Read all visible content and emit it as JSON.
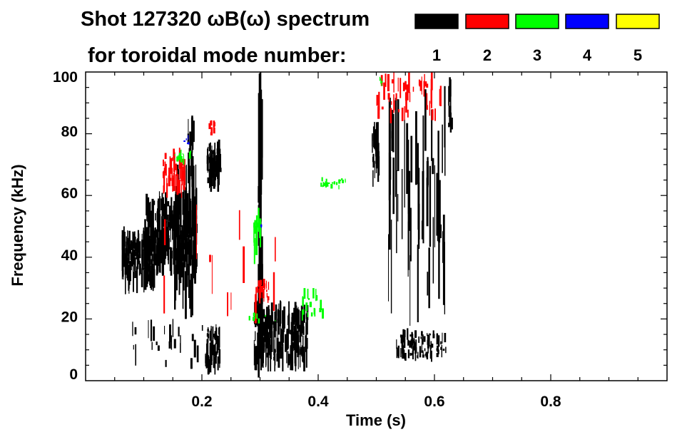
{
  "chart_data": {
    "type": "heatmap",
    "title_line1": "Shot 127320 ωB(ω) spectrum",
    "title_line2": "for toroidal mode number:",
    "xlabel": "Time (s)",
    "ylabel": "Frequency (kHz)",
    "xlim": [
      0,
      1.0
    ],
    "ylim": [
      0,
      100
    ],
    "xticks": [
      0.2,
      0.4,
      0.6,
      0.8
    ],
    "xtick_labels": [
      "0.2",
      "0.4",
      "0.6",
      "0.8"
    ],
    "yticks": [
      0,
      20,
      40,
      60,
      80,
      100
    ],
    "ytick_labels": [
      "0",
      "20",
      "40",
      "60",
      "80",
      "100"
    ],
    "legend_position": "top-right",
    "legend": [
      {
        "label": "1",
        "color": "#000000"
      },
      {
        "label": "2",
        "color": "#ff0000"
      },
      {
        "label": "3",
        "color": "#00ff00"
      },
      {
        "label": "4",
        "color": "#0000ff"
      },
      {
        "label": "5",
        "color": "#ffff00"
      }
    ],
    "regions": [
      {
        "mode": 1,
        "t": [
          0.062,
          0.118
        ],
        "f": [
          28,
          50
        ],
        "density": 140
      },
      {
        "mode": 1,
        "t": [
          0.1,
          0.19
        ],
        "f": [
          34,
          62
        ],
        "density": 220
      },
      {
        "mode": 1,
        "t": [
          0.15,
          0.19
        ],
        "f": [
          20,
          70
        ],
        "density": 70
      },
      {
        "mode": 1,
        "t": [
          0.175,
          0.185
        ],
        "f": [
          60,
          88
        ],
        "density": 15
      },
      {
        "mode": 1,
        "t": [
          0.208,
          0.233
        ],
        "f": [
          61,
          79
        ],
        "density": 70
      },
      {
        "mode": 1,
        "t": [
          0.205,
          0.232
        ],
        "f": [
          2,
          19
        ],
        "density": 60
      },
      {
        "mode": 1,
        "t": [
          0.288,
          0.38
        ],
        "f": [
          3,
          26
        ],
        "density": 200
      },
      {
        "mode": 1,
        "t": [
          0.296,
          0.302
        ],
        "f": [
          0,
          100
        ],
        "density": 40
      },
      {
        "mode": 1,
        "t": [
          0.492,
          0.503
        ],
        "f": [
          61,
          86
        ],
        "density": 25
      },
      {
        "mode": 1,
        "t": [
          0.534,
          0.62
        ],
        "f": [
          6,
          17
        ],
        "density": 90
      },
      {
        "mode": 1,
        "t": [
          0.52,
          0.62
        ],
        "f": [
          15,
          98
        ],
        "density": 60
      },
      {
        "mode": 1,
        "t": [
          0.623,
          0.628
        ],
        "f": [
          78,
          99
        ],
        "density": 12
      },
      {
        "mode": 1,
        "t": [
          0.08,
          0.2
        ],
        "f": [
          2,
          20
        ],
        "density": 25
      },
      {
        "mode": 2,
        "t": [
          0.13,
          0.17
        ],
        "f": [
          58,
          76
        ],
        "density": 45
      },
      {
        "mode": 2,
        "t": [
          0.21,
          0.222
        ],
        "f": [
          79,
          85
        ],
        "density": 10
      },
      {
        "mode": 2,
        "t": [
          0.29,
          0.315
        ],
        "f": [
          25,
          33
        ],
        "density": 25
      },
      {
        "mode": 2,
        "t": [
          0.5,
          0.61
        ],
        "f": [
          83,
          100
        ],
        "density": 50
      },
      {
        "mode": 2,
        "t": [
          0.13,
          0.34
        ],
        "f": [
          15,
          60
        ],
        "density": 12
      },
      {
        "mode": 3,
        "t": [
          0.403,
          0.45
        ],
        "f": [
          62,
          66
        ],
        "density": 25
      },
      {
        "mode": 3,
        "t": [
          0.37,
          0.41
        ],
        "f": [
          19,
          30
        ],
        "density": 20
      },
      {
        "mode": 3,
        "t": [
          0.15,
          0.18
        ],
        "f": [
          70,
          76
        ],
        "density": 15
      },
      {
        "mode": 3,
        "t": [
          0.288,
          0.3
        ],
        "f": [
          36,
          60
        ],
        "density": 12
      },
      {
        "mode": 3,
        "t": [
          0.505,
          0.51
        ],
        "f": [
          94,
          100
        ],
        "density": 5
      },
      {
        "mode": 3,
        "t": [
          0.27,
          0.33
        ],
        "f": [
          18,
          23
        ],
        "density": 8
      },
      {
        "mode": 4,
        "t": [
          0.165,
          0.18
        ],
        "f": [
          76,
          80
        ],
        "density": 6
      },
      {
        "mode": 4,
        "t": [
          0.3,
          0.302
        ],
        "f": [
          48,
          51
        ],
        "density": 2
      }
    ]
  }
}
